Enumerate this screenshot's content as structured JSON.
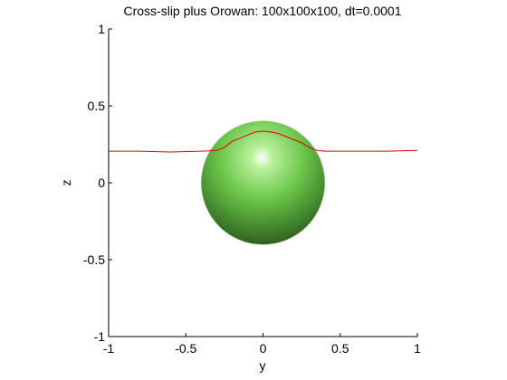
{
  "chart_data": {
    "type": "line",
    "title": "Cross-slip plus Orowan: 100x100x100, dt=0.0001",
    "x_label": "y",
    "y_label": "z",
    "x": [
      -1,
      -0.8,
      -0.6,
      -0.4,
      -0.3,
      -0.25,
      -0.2,
      -0.15,
      -0.1,
      -0.05,
      0,
      0.05,
      0.1,
      0.15,
      0.2,
      0.25,
      0.3,
      0.35,
      0.4,
      0.6,
      0.8,
      1
    ],
    "series": [
      {
        "color": "#e00000",
        "values": [
          0.205,
          0.205,
          0.2,
          0.205,
          0.21,
          0.23,
          0.27,
          0.29,
          0.31,
          0.33,
          0.335,
          0.33,
          0.32,
          0.3,
          0.28,
          0.26,
          0.23,
          0.21,
          0.205,
          0.205,
          0.205,
          0.21
        ]
      }
    ],
    "sphere": {
      "center": [
        0,
        0
      ],
      "radius": 0.4,
      "color": "#5fb040"
    },
    "xlim": [
      -1,
      1
    ],
    "ylim": [
      -1,
      1
    ],
    "xticks": [
      -1,
      -0.5,
      0,
      0.5,
      1
    ],
    "yticks": [
      -1,
      -0.5,
      0,
      0.5,
      1
    ]
  }
}
